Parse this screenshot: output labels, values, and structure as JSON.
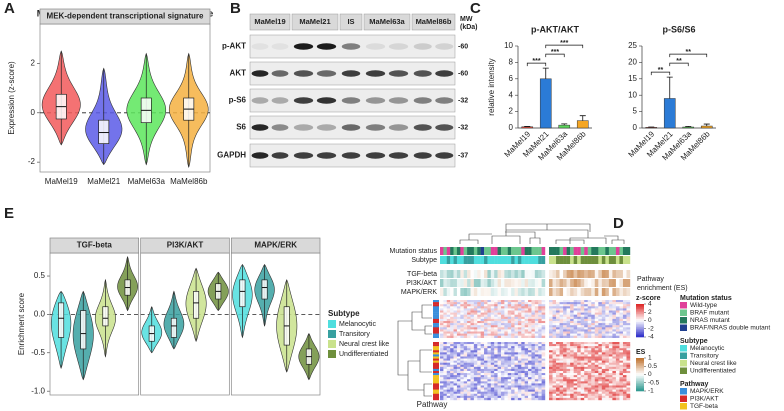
{
  "panel_labels": [
    "A",
    "B",
    "C",
    "D",
    "E"
  ],
  "blot": {
    "columns": [
      "MaMel19",
      "MaMel21",
      "IS",
      "MaMel63a",
      "MaMel86b"
    ],
    "mw_header": [
      "MW",
      "(kDa)"
    ],
    "rows": [
      {
        "label": "p-AKT",
        "mw": "-60"
      },
      {
        "label": "AKT",
        "mw": "-60"
      },
      {
        "label": "p-S6",
        "mw": "-32"
      },
      {
        "label": "S6",
        "mw": "-32"
      },
      {
        "label": "GAPDH",
        "mw": "-37"
      }
    ]
  },
  "heatmap": {
    "annotation_rows": [
      "Mutation status",
      "Subtype"
    ],
    "pathway_rows": [
      "TGF-beta",
      "PI3K/AKT",
      "MAPK/ERK"
    ],
    "pathway_title": [
      "Pathway",
      "enrichment (ES)"
    ],
    "row_annotation_label": "Pathway",
    "zscore": {
      "title": "z-score",
      "lim": [
        -4,
        4
      ],
      "ticks": [
        4,
        2,
        0,
        -2,
        -4
      ]
    },
    "es": {
      "title": "ES",
      "lim": [
        -1,
        1
      ],
      "ticks": [
        1,
        0.5,
        0,
        -0.5,
        -1
      ]
    },
    "legends": [
      {
        "title": "Mutation status",
        "items": [
          {
            "name": "Wild-type",
            "color": "#e0409a"
          },
          {
            "name": "BRAF mutant",
            "color": "#6cc68e"
          },
          {
            "name": "NRAS mutant",
            "color": "#23795c"
          },
          {
            "name": "BRAF/NRAS double mutant",
            "color": "#1f3f8f"
          }
        ]
      },
      {
        "title": "Subtype",
        "items": [
          {
            "name": "Melanocytic",
            "color": "#4fdede"
          },
          {
            "name": "Transitory",
            "color": "#37a0a0"
          },
          {
            "name": "Neural crest like",
            "color": "#c9e28c"
          },
          {
            "name": "Undifferentiated",
            "color": "#6e8f3c"
          }
        ]
      },
      {
        "title": "Pathway",
        "items": [
          {
            "name": "MAPK/ERK",
            "color": "#3a8fdc"
          },
          {
            "name": "PI3K/AKT",
            "color": "#d62a2a"
          },
          {
            "name": "TGF-beta",
            "color": "#f2c21f"
          }
        ]
      }
    ]
  },
  "chart_data": [
    {
      "type": "violin",
      "title": "MEK-dependent transcriptional signature",
      "y_label": "Expression (z-score)",
      "categories": [
        "MaMel19",
        "MaMel21",
        "MaMel63a",
        "MaMel86b"
      ],
      "colors": [
        "#f2595b",
        "#5b5be8",
        "#5ce65c",
        "#f5b041"
      ],
      "ylim": [
        -2.4,
        3.6
      ],
      "yticks": [
        -2,
        0,
        2
      ],
      "hline": 0,
      "min": [
        -1.3,
        -2.1,
        -2.1,
        -2.2
      ],
      "q1": [
        -0.25,
        -1.25,
        -0.4,
        -0.3
      ],
      "median": [
        0.25,
        -0.8,
        0.1,
        0.15
      ],
      "q3": [
        0.75,
        -0.3,
        0.6,
        0.6
      ],
      "max": [
        2.5,
        1.8,
        2.4,
        2.4
      ]
    },
    {
      "type": "bar",
      "title": "p-AKT/AKT",
      "y_label": "relative intensity",
      "categories": [
        "MaMel19",
        "MaMel21",
        "MaMel63a",
        "MaMel86b"
      ],
      "colors": [
        "#e74c3c",
        "#2b7bd6",
        "#5cd65c",
        "#f5a623"
      ],
      "values": [
        0.15,
        6.0,
        0.35,
        0.9
      ],
      "errors": [
        0.05,
        1.3,
        0.15,
        0.6
      ],
      "ylim": [
        0,
        10
      ],
      "yticks": [
        0,
        2,
        4,
        6,
        8,
        10
      ],
      "significance": [
        {
          "label": "***",
          "pair": [
            0,
            1
          ]
        },
        {
          "label": "***",
          "pair": [
            1,
            2
          ]
        },
        {
          "label": "***",
          "pair": [
            1,
            3
          ]
        }
      ]
    },
    {
      "type": "bar",
      "title": "p-S6/S6",
      "categories": [
        "MaMel19",
        "MaMel21",
        "MaMel63a",
        "MaMel86b"
      ],
      "colors": [
        "#e74c3c",
        "#2b7bd6",
        "#5cd65c",
        "#f5a623"
      ],
      "values": [
        0.2,
        9,
        0.3,
        0.6
      ],
      "errors": [
        0.1,
        6.5,
        0.2,
        0.6
      ],
      "ylim": [
        0,
        25
      ],
      "yticks": [
        0,
        5,
        10,
        15,
        20,
        25
      ],
      "significance": [
        {
          "label": "**",
          "pair": [
            0,
            1
          ]
        },
        {
          "label": "**",
          "pair": [
            1,
            2
          ]
        },
        {
          "label": "**",
          "pair": [
            1,
            3
          ]
        }
      ]
    },
    {
      "type": "violin",
      "y_label": "Enrichment score",
      "legend": true,
      "legend_title": "Subtype",
      "categories": [
        "Melanocytic",
        "Transitory",
        "Neural crest like",
        "Undifferentiated"
      ],
      "colors": [
        "#4fdede",
        "#37a0a0",
        "#c9e28c",
        "#6e8f3c"
      ],
      "ylim": [
        -1.05,
        0.8
      ],
      "yticks": [
        {
          "value": -1.0,
          "label": "-1.0"
        },
        {
          "value": -0.5,
          "label": "-0.5"
        },
        {
          "value": 0.0,
          "label": "0.0"
        },
        {
          "value": 0.5,
          "label": "0.5"
        }
      ],
      "hline": 0,
      "facets": [
        {
          "title": "TGF-beta",
          "min": [
            -0.7,
            -0.85,
            -0.55,
            0.05
          ],
          "q1": [
            -0.3,
            -0.45,
            -0.15,
            0.25
          ],
          "median": [
            -0.05,
            -0.25,
            -0.05,
            0.35
          ],
          "q3": [
            0.15,
            0.05,
            0.1,
            0.45
          ],
          "max": [
            0.3,
            0.3,
            0.45,
            0.75
          ]
        },
        {
          "title": "PI3K/AKT",
          "min": [
            -0.5,
            -0.45,
            -0.35,
            0.05
          ],
          "q1": [
            -0.35,
            -0.3,
            -0.05,
            0.2
          ],
          "median": [
            -0.25,
            -0.15,
            0.15,
            0.3
          ],
          "q3": [
            -0.15,
            -0.05,
            0.3,
            0.4
          ],
          "max": [
            0.1,
            0.3,
            0.6,
            0.55
          ]
        },
        {
          "title": "MAPK/ERK",
          "min": [
            -0.3,
            -0.15,
            -0.75,
            -0.85
          ],
          "q1": [
            0.1,
            0.2,
            -0.4,
            -0.65
          ],
          "median": [
            0.3,
            0.35,
            -0.15,
            -0.55
          ],
          "q3": [
            0.45,
            0.45,
            0.1,
            -0.45
          ],
          "max": [
            0.65,
            0.65,
            0.45,
            -0.25
          ]
        }
      ]
    }
  ]
}
